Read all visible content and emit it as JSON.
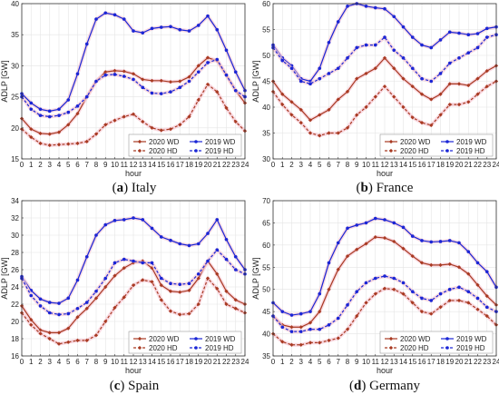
{
  "figure": {
    "panels_caption_style": "letter-bold"
  },
  "legend": {
    "entries": [
      {
        "key": "wd2020",
        "label": "2020 WD",
        "color": "#a83a22",
        "dash": false,
        "marker": "diamond"
      },
      {
        "key": "wd2019",
        "label": "2019 WD",
        "color": "#1a26d6",
        "dash": false,
        "marker": "circle"
      },
      {
        "key": "hd2020",
        "label": "2020 HD",
        "color": "#a83a22",
        "dash": true,
        "marker": "diamond"
      },
      {
        "key": "hd2019",
        "label": "2019 HD",
        "color": "#1a26d6",
        "dash": true,
        "marker": "circle"
      }
    ]
  },
  "chart_data": [
    {
      "type": "line",
      "panel_letter": "(a)",
      "panel_name": "Italy",
      "xlabel": "hour",
      "ylabel": "ADLP [GW]",
      "xlim": [
        0,
        24
      ],
      "ylim": [
        15,
        40
      ],
      "yticks": [
        15,
        20,
        25,
        30,
        35,
        40
      ],
      "xticks": [
        0,
        1,
        2,
        3,
        4,
        5,
        6,
        7,
        8,
        9,
        10,
        11,
        12,
        13,
        14,
        15,
        16,
        17,
        18,
        19,
        20,
        21,
        22,
        23,
        24
      ],
      "grid": true,
      "legend_position": "bottom-right",
      "x": [
        0,
        1,
        2,
        3,
        4,
        5,
        6,
        7,
        8,
        9,
        10,
        11,
        12,
        13,
        14,
        15,
        16,
        17,
        18,
        19,
        20,
        21,
        22,
        23,
        24
      ],
      "series": [
        {
          "key": "wd2020",
          "name": "2020 WD",
          "values": [
            21.5,
            19.8,
            19.1,
            19.0,
            19.3,
            20.5,
            22.3,
            25.0,
            27.5,
            29.0,
            29.2,
            29.1,
            28.7,
            27.8,
            27.6,
            27.6,
            27.4,
            27.5,
            28.2,
            30.0,
            31.3,
            30.8,
            28.5,
            26.0,
            24.0
          ]
        },
        {
          "key": "wd2019",
          "name": "2019 WD",
          "values": [
            25.5,
            24.0,
            23.0,
            22.7,
            23.0,
            24.5,
            28.7,
            33.5,
            37.5,
            38.5,
            38.2,
            37.5,
            35.6,
            35.3,
            36.0,
            36.2,
            36.3,
            35.8,
            35.6,
            36.5,
            38.0,
            35.8,
            32.5,
            29.0,
            26.0
          ]
        },
        {
          "key": "hd2020",
          "name": "2020 HD",
          "values": [
            19.8,
            18.5,
            17.5,
            17.2,
            17.3,
            17.4,
            17.5,
            17.8,
            19.0,
            20.5,
            21.2,
            21.8,
            22.2,
            21.0,
            20.0,
            19.6,
            19.8,
            20.5,
            21.8,
            24.5,
            27.0,
            25.8,
            23.2,
            21.0,
            19.5
          ]
        },
        {
          "key": "hd2019",
          "name": "2019 HD",
          "values": [
            25.0,
            23.0,
            22.0,
            21.8,
            22.0,
            22.5,
            23.5,
            25.0,
            27.5,
            28.5,
            28.6,
            28.3,
            27.8,
            26.5,
            25.6,
            25.5,
            25.8,
            26.5,
            27.5,
            29.0,
            30.5,
            31.0,
            28.5,
            26.0,
            25.0
          ]
        }
      ]
    },
    {
      "type": "line",
      "panel_letter": "(b)",
      "panel_name": "France",
      "xlabel": "hour",
      "ylabel": "ADLP [GW]",
      "xlim": [
        0,
        24
      ],
      "ylim": [
        30,
        60
      ],
      "yticks": [
        30,
        35,
        40,
        45,
        50,
        55,
        60
      ],
      "xticks": [
        0,
        1,
        2,
        3,
        4,
        5,
        6,
        7,
        8,
        9,
        10,
        11,
        12,
        13,
        14,
        15,
        16,
        17,
        18,
        19,
        20,
        21,
        22,
        23,
        24
      ],
      "grid": true,
      "legend_position": "bottom-right",
      "x": [
        0,
        1,
        2,
        3,
        4,
        5,
        6,
        7,
        8,
        9,
        10,
        11,
        12,
        13,
        14,
        15,
        16,
        17,
        18,
        19,
        20,
        21,
        22,
        23,
        24
      ],
      "series": [
        {
          "key": "wd2020",
          "name": "2020 WD",
          "values": [
            45.0,
            42.5,
            41.0,
            39.5,
            37.5,
            38.5,
            39.5,
            41.5,
            43.0,
            45.5,
            46.5,
            47.5,
            49.5,
            47.5,
            45.5,
            44.0,
            42.5,
            41.5,
            42.5,
            44.5,
            44.5,
            44.2,
            45.5,
            47.0,
            48.0
          ]
        },
        {
          "key": "wd2019",
          "name": "2019 WD",
          "values": [
            52.0,
            49.5,
            48.0,
            45.5,
            45.0,
            47.5,
            52.5,
            56.5,
            59.5,
            60.0,
            59.5,
            59.2,
            59.0,
            57.5,
            55.5,
            53.5,
            52.0,
            51.5,
            53.0,
            54.5,
            54.3,
            54.0,
            54.2,
            55.2,
            55.5
          ]
        },
        {
          "key": "hd2020",
          "name": "2020 HD",
          "values": [
            43.0,
            40.5,
            38.5,
            37.0,
            35.0,
            34.5,
            35.0,
            35.0,
            36.0,
            38.5,
            40.0,
            42.0,
            44.0,
            42.0,
            40.0,
            38.0,
            37.0,
            36.5,
            38.5,
            40.5,
            40.5,
            41.0,
            42.5,
            44.0,
            45.0
          ]
        },
        {
          "key": "hd2019",
          "name": "2019 HD",
          "values": [
            51.5,
            49.0,
            47.5,
            45.0,
            44.5,
            45.5,
            46.5,
            47.5,
            49.5,
            51.5,
            52.0,
            52.0,
            53.5,
            51.0,
            49.5,
            47.5,
            45.5,
            45.0,
            46.5,
            48.5,
            49.5,
            50.5,
            51.5,
            53.5,
            54.0
          ]
        }
      ]
    },
    {
      "type": "line",
      "panel_letter": "(c)",
      "panel_name": "Spain",
      "xlabel": "hour",
      "ylabel": "ADLP [GW]",
      "xlim": [
        0,
        24
      ],
      "ylim": [
        16,
        34
      ],
      "yticks": [
        16,
        18,
        20,
        22,
        24,
        26,
        28,
        30,
        32,
        34
      ],
      "xticks": [
        0,
        1,
        2,
        3,
        4,
        5,
        6,
        7,
        8,
        9,
        10,
        11,
        12,
        13,
        14,
        15,
        16,
        17,
        18,
        19,
        20,
        21,
        22,
        23,
        24
      ],
      "grid": true,
      "legend_position": "bottom-right",
      "x": [
        0,
        1,
        2,
        3,
        4,
        5,
        6,
        7,
        8,
        9,
        10,
        11,
        12,
        13,
        14,
        15,
        16,
        17,
        18,
        19,
        20,
        21,
        22,
        23,
        24
      ],
      "series": [
        {
          "key": "wd2020",
          "name": "2020 WD",
          "values": [
            21.8,
            20.2,
            19.0,
            18.7,
            18.7,
            19.2,
            20.5,
            21.5,
            22.7,
            24.0,
            25.3,
            26.2,
            26.8,
            27.0,
            26.2,
            24.2,
            23.5,
            23.4,
            23.6,
            25.0,
            27.0,
            25.5,
            23.5,
            22.5,
            22.0
          ]
        },
        {
          "key": "wd2019",
          "name": "2019 WD",
          "values": [
            25.2,
            23.6,
            22.6,
            22.2,
            22.1,
            22.7,
            24.8,
            27.5,
            30.0,
            31.2,
            31.7,
            31.8,
            32.0,
            31.8,
            30.8,
            29.8,
            29.4,
            29.0,
            28.8,
            29.0,
            30.2,
            31.8,
            29.5,
            27.5,
            26.0
          ]
        },
        {
          "key": "hd2020",
          "name": "2020 HD",
          "values": [
            21.0,
            19.6,
            18.6,
            18.0,
            17.4,
            17.6,
            17.8,
            17.8,
            18.4,
            20.0,
            21.6,
            22.8,
            24.2,
            24.8,
            24.6,
            22.5,
            21.2,
            20.8,
            20.9,
            22.0,
            25.0,
            23.8,
            22.0,
            21.5,
            21.0
          ]
        },
        {
          "key": "hd2019",
          "name": "2019 HD",
          "values": [
            25.0,
            23.0,
            21.8,
            21.0,
            20.8,
            20.9,
            21.5,
            22.2,
            23.5,
            25.0,
            26.8,
            27.2,
            27.0,
            26.8,
            26.8,
            25.0,
            24.4,
            24.3,
            24.4,
            25.5,
            27.0,
            28.3,
            27.2,
            26.0,
            25.5
          ]
        }
      ]
    },
    {
      "type": "line",
      "panel_letter": "(d)",
      "panel_name": "Germany",
      "xlabel": "hour",
      "ylabel": "ADLP [GW]",
      "xlim": [
        0,
        24
      ],
      "ylim": [
        35,
        70
      ],
      "yticks": [
        35,
        40,
        45,
        50,
        55,
        60,
        65,
        70
      ],
      "xticks": [
        0,
        1,
        2,
        3,
        4,
        5,
        6,
        7,
        8,
        9,
        10,
        11,
        12,
        13,
        14,
        15,
        16,
        17,
        18,
        19,
        20,
        21,
        22,
        23,
        24
      ],
      "grid": true,
      "legend_position": "bottom-right",
      "x": [
        0,
        1,
        2,
        3,
        4,
        5,
        6,
        7,
        8,
        9,
        10,
        11,
        12,
        13,
        14,
        15,
        16,
        17,
        18,
        19,
        20,
        21,
        22,
        23,
        24
      ],
      "series": [
        {
          "key": "wd2020",
          "name": "2020 WD",
          "values": [
            44.0,
            42.0,
            41.5,
            41.5,
            42.5,
            45.0,
            50.0,
            54.5,
            57.5,
            59.0,
            60.3,
            61.8,
            61.6,
            60.8,
            59.2,
            57.5,
            56.0,
            55.5,
            55.5,
            55.7,
            55.0,
            53.5,
            51.0,
            48.5,
            46.5
          ]
        },
        {
          "key": "wd2019",
          "name": "2019 WD",
          "values": [
            47.0,
            45.0,
            44.2,
            44.5,
            45.0,
            49.0,
            56.0,
            60.5,
            63.8,
            64.5,
            65.0,
            66.0,
            65.7,
            65.0,
            64.0,
            62.0,
            61.0,
            60.7,
            60.8,
            61.0,
            60.5,
            58.5,
            56.0,
            54.0,
            50.5
          ]
        },
        {
          "key": "hd2020",
          "name": "2020 HD",
          "values": [
            40.0,
            38.2,
            37.5,
            37.5,
            38.0,
            38.0,
            38.5,
            39.0,
            41.0,
            44.0,
            47.0,
            49.0,
            50.2,
            50.0,
            49.0,
            47.0,
            45.0,
            44.5,
            46.0,
            47.5,
            47.5,
            47.0,
            45.5,
            44.0,
            42.0
          ]
        },
        {
          "key": "hd2019",
          "name": "2019 HD",
          "values": [
            44.0,
            41.5,
            40.5,
            40.5,
            41.0,
            41.0,
            42.0,
            43.5,
            46.5,
            49.5,
            51.5,
            52.5,
            53.0,
            52.5,
            51.5,
            49.5,
            48.0,
            47.5,
            49.0,
            50.0,
            50.5,
            49.5,
            48.0,
            46.0,
            45.0
          ]
        }
      ]
    }
  ]
}
